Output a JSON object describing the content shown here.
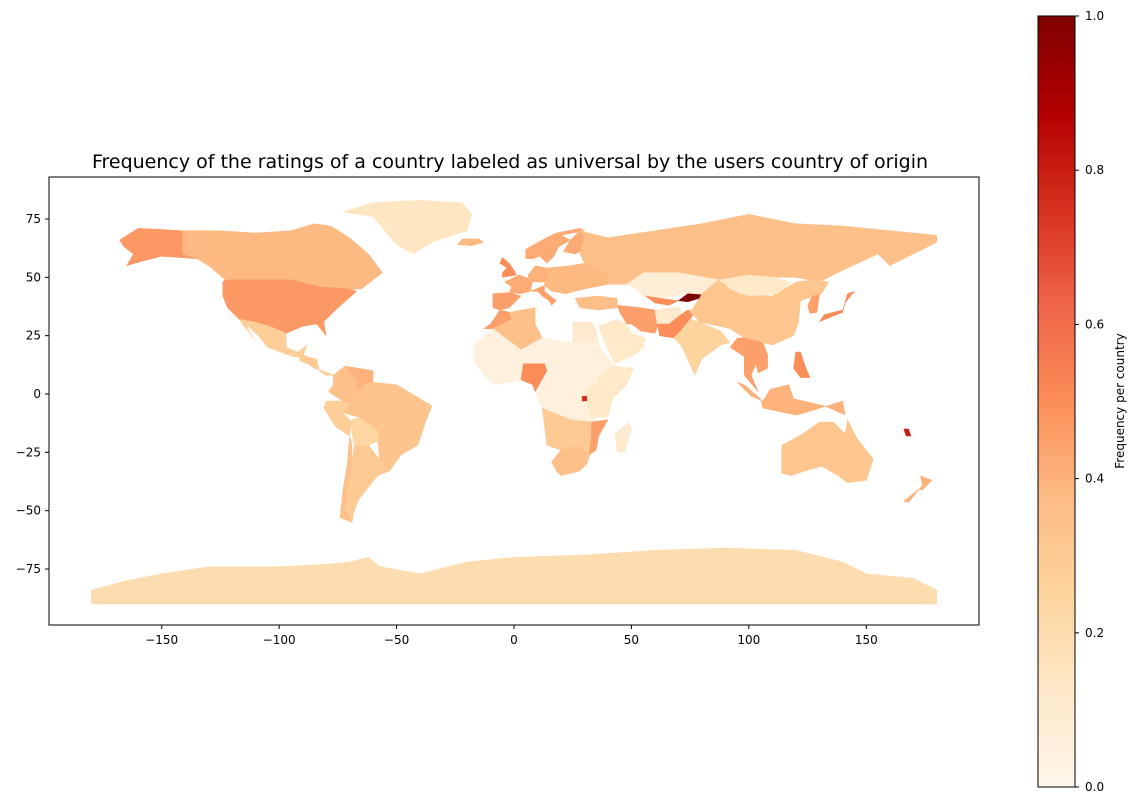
{
  "title": "Frequency of the ratings of a country labeled as universal by the users country of origin",
  "colorbar": {
    "label": "Frequency per country",
    "ticks": [
      "0.0",
      "0.2",
      "0.4",
      "0.6",
      "0.8",
      "1.0"
    ],
    "range": [
      0,
      1
    ],
    "colormap": "OrRd",
    "stops": [
      "#fff7ec",
      "#fee8c8",
      "#fdd49e",
      "#fdbb84",
      "#fc8d59",
      "#ef6548",
      "#d7301f",
      "#b30000",
      "#7f0000"
    ]
  },
  "axes": {
    "x_ticks": [
      "−150",
      "−100",
      "−50",
      "0",
      "50",
      "100",
      "150"
    ],
    "y_ticks": [
      "75",
      "50",
      "25",
      "0",
      "−25",
      "−50",
      "−75"
    ],
    "xlim": [
      -198,
      198
    ],
    "ylim": [
      -99,
      93
    ]
  },
  "chart_data": {
    "type": "choropleth",
    "value_name": "Frequency per country",
    "regions": [
      {
        "name": "Antarctica",
        "value": 0.2
      },
      {
        "name": "Greenland",
        "value": 0.14
      },
      {
        "name": "Alaska (USA)",
        "value": 0.47
      },
      {
        "name": "Canada",
        "value": 0.38
      },
      {
        "name": "United States",
        "value": 0.47
      },
      {
        "name": "Mexico",
        "value": 0.28
      },
      {
        "name": "Central America",
        "value": 0.3
      },
      {
        "name": "Colombia",
        "value": 0.35
      },
      {
        "name": "Venezuela",
        "value": 0.4
      },
      {
        "name": "Brazil",
        "value": 0.33
      },
      {
        "name": "Peru",
        "value": 0.28
      },
      {
        "name": "Bolivia",
        "value": 0.24
      },
      {
        "name": "Argentina",
        "value": 0.3
      },
      {
        "name": "Chile",
        "value": 0.35
      },
      {
        "name": "Iceland",
        "value": 0.38
      },
      {
        "name": "Norway",
        "value": 0.42
      },
      {
        "name": "Sweden",
        "value": 0.42
      },
      {
        "name": "Finland",
        "value": 0.42
      },
      {
        "name": "United Kingdom",
        "value": 0.5
      },
      {
        "name": "Spain",
        "value": 0.45
      },
      {
        "name": "France",
        "value": 0.42
      },
      {
        "name": "Germany",
        "value": 0.4
      },
      {
        "name": "Italy",
        "value": 0.45
      },
      {
        "name": "Eastern Europe",
        "value": 0.38
      },
      {
        "name": "Turkey",
        "value": 0.36
      },
      {
        "name": "Russia",
        "value": 0.35
      },
      {
        "name": "Kazakhstan",
        "value": 0.08
      },
      {
        "name": "Kyrgyzstan",
        "value": 1.0
      },
      {
        "name": "Uzbekistan",
        "value": 0.5
      },
      {
        "name": "Iran",
        "value": 0.45
      },
      {
        "name": "Afghanistan",
        "value": 0.1
      },
      {
        "name": "Pakistan",
        "value": 0.5
      },
      {
        "name": "Saudi Arabia",
        "value": 0.12
      },
      {
        "name": "India",
        "value": 0.25
      },
      {
        "name": "China",
        "value": 0.32
      },
      {
        "name": "Mongolia",
        "value": 0.12
      },
      {
        "name": "Japan",
        "value": 0.5
      },
      {
        "name": "Korea",
        "value": 0.45
      },
      {
        "name": "Southeast Asia",
        "value": 0.45
      },
      {
        "name": "Philippines",
        "value": 0.5
      },
      {
        "name": "Indonesia",
        "value": 0.4
      },
      {
        "name": "Australia",
        "value": 0.32
      },
      {
        "name": "New Zealand",
        "value": 0.4
      },
      {
        "name": "Morocco",
        "value": 0.45
      },
      {
        "name": "Algeria",
        "value": 0.35
      },
      {
        "name": "Egypt",
        "value": 0.1
      },
      {
        "name": "Sahel & Central Africa",
        "value": 0.05
      },
      {
        "name": "Nigeria",
        "value": 0.5
      },
      {
        "name": "East Africa",
        "value": 0.12
      },
      {
        "name": "Southern Africa",
        "value": 0.3
      },
      {
        "name": "South Africa",
        "value": 0.35
      },
      {
        "name": "Madagascar",
        "value": 0.1
      },
      {
        "name": "Mozambique",
        "value": 0.45
      },
      {
        "name": "Rwanda",
        "value": 0.75
      },
      {
        "name": "Vanuatu",
        "value": 0.8
      }
    ]
  }
}
